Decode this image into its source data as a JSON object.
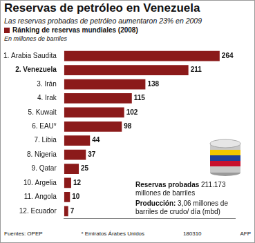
{
  "chart_data": {
    "type": "bar",
    "orientation": "horizontal",
    "title": "Reservas de petróleo en Venezuela",
    "subtitle": "Las reservas probadas de petróleo aumentaron 23% en 2009",
    "x_label": "En millones de barriles",
    "categories": [
      "1. Arabia Saudita",
      "2. Venezuela",
      "3. Irán",
      "4. Irak",
      "5. Kuwait",
      "6. EAU*",
      "7. Libia",
      "8. Nigeria",
      "9. Qatar",
      "10. Argelia",
      "11. Angola",
      "12. Ecuador"
    ],
    "series": [
      {
        "name": "Ránking de reservas mundiales (2008)",
        "color": "#8b1a1a",
        "values": [
          264,
          211,
          138,
          115,
          102,
          98,
          44,
          37,
          25,
          12,
          10,
          7
        ]
      }
    ],
    "xlim": [
      0,
      290
    ],
    "legend": "top-left",
    "grid": false,
    "tick_labels": "y",
    "data_labels": true,
    "annotations": [
      {
        "title": "Reservas probadas",
        "text": "211.173 millones de barriles"
      },
      {
        "title": "Producción:",
        "text": "3,06 millones de barriles de crudo/ día (mbd)"
      }
    ],
    "source": "Fuentes: OPEP",
    "notes": [
      "* Emiratos Árabes Unidos",
      "180310",
      "AFP"
    ]
  }
}
